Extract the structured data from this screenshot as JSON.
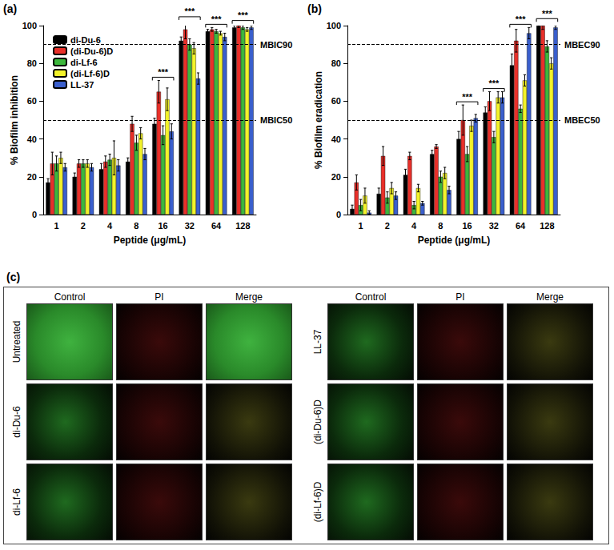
{
  "chart_data": [
    {
      "type": "bar",
      "title": "(a)",
      "x_label": "Peptide (μg/mL)",
      "y_label": "% Biofilm inhibition",
      "categories": [
        "1",
        "2",
        "4",
        "8",
        "16",
        "32",
        "64",
        "128"
      ],
      "ylim": [
        0,
        100
      ],
      "yticks": [
        0,
        20,
        40,
        60,
        80,
        100
      ],
      "grid": false,
      "legend": "top-left",
      "series": [
        {
          "name": "di-Du-6",
          "color": "#000000",
          "values": [
            17,
            20,
            24,
            28,
            48,
            92,
            97,
            99
          ],
          "errors": [
            2,
            2,
            3,
            2,
            3,
            2,
            1,
            1
          ]
        },
        {
          "name": "(di-Du-6)D",
          "color": "#e8302a",
          "values": [
            27,
            27,
            28,
            48,
            65,
            98,
            98,
            100
          ],
          "errors": [
            6,
            2,
            3,
            4,
            6,
            5,
            1,
            1
          ]
        },
        {
          "name": "di-Lf-6",
          "color": "#3cb73c",
          "values": [
            27,
            27,
            29,
            38,
            42,
            90,
            97,
            99
          ],
          "errors": [
            4,
            2,
            3,
            4,
            5,
            3,
            1,
            1
          ]
        },
        {
          "name": "(di-Lf-6)D",
          "color": "#f2f22a",
          "values": [
            30,
            27,
            30,
            43,
            61,
            88,
            96,
            98
          ],
          "errors": [
            3,
            2,
            9,
            3,
            6,
            3,
            1,
            1
          ]
        },
        {
          "name": "LL-37",
          "color": "#3a5fcd",
          "values": [
            25,
            25,
            26,
            32,
            44,
            72,
            94,
            99
          ],
          "errors": [
            2,
            2,
            3,
            3,
            4,
            3,
            2,
            1
          ]
        }
      ],
      "reference_lines": [
        {
          "value": 90,
          "label": "MBIC90"
        },
        {
          "value": 50,
          "label": "MBIC50"
        }
      ],
      "annotations": [
        {
          "category": "16",
          "text": "***"
        },
        {
          "category": "32",
          "text": "***"
        },
        {
          "category": "64",
          "text": "***"
        },
        {
          "category": "128",
          "text": "***"
        }
      ]
    },
    {
      "type": "bar",
      "title": "(b)",
      "x_label": "Peptide (μg/mL)",
      "y_label": "% Biofilm eradication",
      "categories": [
        "1",
        "2",
        "4",
        "8",
        "16",
        "32",
        "64",
        "128"
      ],
      "ylim": [
        0,
        100
      ],
      "yticks": [
        0,
        20,
        40,
        60,
        80,
        100
      ],
      "grid": false,
      "series": [
        {
          "name": "di-Du-6",
          "color": "#000000",
          "values": [
            3,
            11,
            21,
            32,
            40,
            54,
            79,
            100
          ],
          "errors": [
            2,
            3,
            3,
            2,
            4,
            3,
            6,
            2
          ]
        },
        {
          "name": "(di-Du-6)D",
          "color": "#e8302a",
          "values": [
            17,
            31,
            31,
            36,
            50,
            60,
            92,
            100
          ],
          "errors": [
            4,
            5,
            2,
            1,
            8,
            5,
            6,
            2
          ]
        },
        {
          "name": "di-Lf-6",
          "color": "#3cb73c",
          "values": [
            5,
            9,
            5,
            20,
            32,
            41,
            56,
            89
          ],
          "errors": [
            3,
            3,
            2,
            3,
            4,
            3,
            2,
            3
          ]
        },
        {
          "name": "(di-Lf-6)D",
          "color": "#f2f22a",
          "values": [
            10,
            14,
            14,
            22,
            47,
            62,
            71,
            80
          ],
          "errors": [
            4,
            3,
            2,
            3,
            3,
            3,
            3,
            3
          ]
        },
        {
          "name": "LL-37",
          "color": "#3a5fcd",
          "values": [
            1,
            10,
            6,
            13,
            51,
            62,
            96,
            99
          ],
          "errors": [
            1,
            2,
            1,
            2,
            2,
            3,
            3,
            1
          ]
        }
      ],
      "reference_lines": [
        {
          "value": 90,
          "label": "MBEC90"
        },
        {
          "value": 50,
          "label": "MBEC50"
        }
      ],
      "annotations": [
        {
          "category": "16",
          "text": "***"
        },
        {
          "category": "32",
          "text": "***"
        },
        {
          "category": "64",
          "text": "***"
        },
        {
          "category": "128",
          "text": "***"
        }
      ]
    }
  ],
  "panel_c": {
    "label": "(c)",
    "groups": [
      {
        "columns": [
          "Control",
          "PI",
          "Merge"
        ],
        "rows": [
          "Untreated",
          "di-Du-6",
          "di-Lf-6"
        ]
      },
      {
        "columns": [
          "Control",
          "PI",
          "Merge"
        ],
        "rows": [
          "LL-37",
          "(di-Du-6)D",
          "(di-Lf-6)D"
        ]
      }
    ]
  }
}
